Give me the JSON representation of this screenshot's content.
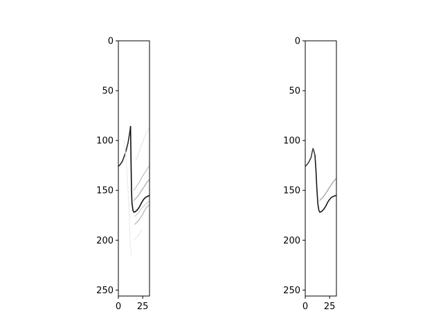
{
  "chart_data": [
    {
      "type": "heatmap",
      "colormap": "gray_r",
      "axes_frame_color": "#000000",
      "xlim": [
        0,
        32
      ],
      "ylim": [
        256,
        0
      ],
      "x_ticks": [
        0,
        25
      ],
      "y_ticks": [
        0,
        50,
        100,
        150,
        200,
        250
      ],
      "x_tick_labels": [
        "0",
        "25"
      ],
      "y_tick_labels": [
        "0",
        "50",
        "100",
        "150",
        "200",
        "250"
      ],
      "grid": false,
      "traces": [
        {
          "name": "",
          "intensity": 0.85,
          "points": [
            [
              0,
              126
            ],
            [
              2,
              124
            ],
            [
              4,
              121
            ],
            [
              6,
              116
            ],
            [
              8,
              110
            ],
            [
              10,
              102
            ],
            [
              11,
              96
            ],
            [
              12,
              90
            ],
            [
              12.5,
              86
            ]
          ]
        },
        {
          "name": "",
          "intensity": 0.95,
          "points": [
            [
              12.5,
              86
            ],
            [
              13,
              120
            ],
            [
              13.5,
              150
            ],
            [
              14,
              163
            ],
            [
              15,
              170
            ],
            [
              16,
              172
            ],
            [
              18,
              171
            ],
            [
              20,
              169
            ],
            [
              22,
              166
            ],
            [
              24,
              162
            ],
            [
              26,
              159
            ],
            [
              28,
              157
            ],
            [
              30,
              156
            ],
            [
              32,
              155
            ]
          ]
        },
        {
          "name": "",
          "intensity": 0.35,
          "points": [
            [
              16,
              160
            ],
            [
              18,
              158
            ],
            [
              20,
              156
            ],
            [
              22,
              153
            ],
            [
              24,
              150
            ],
            [
              26,
              147
            ],
            [
              28,
              144
            ],
            [
              30,
              141
            ],
            [
              32,
              139
            ]
          ]
        },
        {
          "name": "",
          "intensity": 0.25,
          "points": [
            [
              16,
              150
            ],
            [
              18,
              147
            ],
            [
              20,
              144
            ],
            [
              22,
              141
            ],
            [
              24,
              137
            ],
            [
              26,
              134
            ],
            [
              28,
              131
            ],
            [
              30,
              128
            ],
            [
              32,
              125
            ]
          ]
        },
        {
          "name": "",
          "intensity": 0.3,
          "points": [
            [
              17,
              184
            ],
            [
              19,
              182
            ],
            [
              21,
              180
            ],
            [
              23,
              177
            ],
            [
              25,
              174
            ],
            [
              27,
              170
            ],
            [
              29,
              167
            ],
            [
              31,
              165
            ]
          ]
        },
        {
          "name": "",
          "intensity": 0.2,
          "points": [
            [
              17,
              176
            ],
            [
              19,
              174
            ],
            [
              21,
              172
            ],
            [
              23,
              169
            ],
            [
              25,
              167
            ],
            [
              27,
              165
            ],
            [
              29,
              163
            ],
            [
              31,
              161
            ]
          ]
        },
        {
          "name": "",
          "intensity": 0.1,
          "points": [
            [
              18,
              120
            ],
            [
              20,
              115
            ],
            [
              22,
              110
            ],
            [
              24,
              104
            ],
            [
              26,
              99
            ],
            [
              28,
              94
            ],
            [
              30,
              90
            ],
            [
              32,
              86
            ]
          ]
        },
        {
          "name": "",
          "intensity": 0.08,
          "points": [
            [
              16,
              200
            ],
            [
              18,
              198
            ],
            [
              20,
              196
            ],
            [
              22,
              193
            ],
            [
              24,
              190
            ]
          ]
        },
        {
          "name": "",
          "intensity": 0.08,
          "points": [
            [
              6,
              100
            ],
            [
              7,
              110
            ],
            [
              8,
              120
            ],
            [
              9,
              135
            ],
            [
              10,
              150
            ],
            [
              11,
              170
            ],
            [
              12,
              200
            ],
            [
              13,
              215
            ]
          ]
        }
      ]
    },
    {
      "type": "heatmap",
      "colormap": "gray_r",
      "axes_frame_color": "#000000",
      "xlim": [
        0,
        32
      ],
      "ylim": [
        256,
        0
      ],
      "x_ticks": [
        0,
        25
      ],
      "y_ticks": [
        0,
        50,
        100,
        150,
        200,
        250
      ],
      "x_tick_labels": [
        "0",
        "25"
      ],
      "y_tick_labels": [
        "0",
        "50",
        "100",
        "150",
        "200",
        "250"
      ],
      "grid": false,
      "traces": [
        {
          "name": "",
          "intensity": 0.75,
          "points": [
            [
              0,
              126
            ],
            [
              2,
              124
            ],
            [
              4,
              121
            ],
            [
              6,
              117
            ],
            [
              7,
              112
            ],
            [
              8,
              108
            ],
            [
              9,
              111
            ],
            [
              10,
              115
            ]
          ]
        },
        {
          "name": "",
          "intensity": 0.9,
          "points": [
            [
              10,
              115
            ],
            [
              11,
              130
            ],
            [
              12,
              150
            ],
            [
              13,
              164
            ],
            [
              14,
              170
            ],
            [
              15,
              172
            ],
            [
              17,
              171
            ],
            [
              19,
              169
            ],
            [
              21,
              166
            ],
            [
              23,
              162
            ],
            [
              25,
              159
            ],
            [
              27,
              157
            ],
            [
              29,
              156
            ],
            [
              32,
              155
            ]
          ]
        },
        {
          "name": "",
          "intensity": 0.4,
          "points": [
            [
              15,
              160
            ],
            [
              17,
              158
            ],
            [
              19,
              156
            ],
            [
              21,
              153
            ],
            [
              23,
              150
            ],
            [
              25,
              147
            ],
            [
              27,
              144
            ],
            [
              29,
              141
            ],
            [
              32,
              138
            ]
          ]
        }
      ]
    }
  ]
}
